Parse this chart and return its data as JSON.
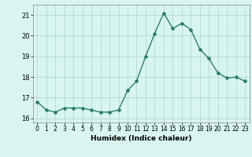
{
  "x": [
    0,
    1,
    2,
    3,
    4,
    5,
    6,
    7,
    8,
    9,
    10,
    11,
    12,
    13,
    14,
    15,
    16,
    17,
    18,
    19,
    20,
    21,
    22,
    23
  ],
  "y": [
    16.8,
    16.4,
    16.3,
    16.5,
    16.5,
    16.5,
    16.4,
    16.3,
    16.3,
    16.4,
    17.35,
    17.8,
    19.0,
    20.1,
    21.1,
    20.35,
    20.6,
    20.3,
    19.35,
    18.9,
    18.2,
    17.95,
    18.0,
    17.8
  ],
  "line_color": "#2e7d6e",
  "marker": "D",
  "marker_size": 2,
  "linewidth": 1.0,
  "bg_color": "#d8f5f0",
  "grid_color": "#b8d8d2",
  "xlabel": "Humidex (Indice chaleur)",
  "ylim": [
    15.8,
    21.5
  ],
  "xlim": [
    -0.5,
    23.5
  ],
  "yticks": [
    16,
    17,
    18,
    19,
    20,
    21
  ],
  "xticks": [
    0,
    1,
    2,
    3,
    4,
    5,
    6,
    7,
    8,
    9,
    10,
    11,
    12,
    13,
    14,
    15,
    16,
    17,
    18,
    19,
    20,
    21,
    22,
    23
  ],
  "tick_fontsize": 5.5,
  "xlabel_fontsize": 6.5
}
